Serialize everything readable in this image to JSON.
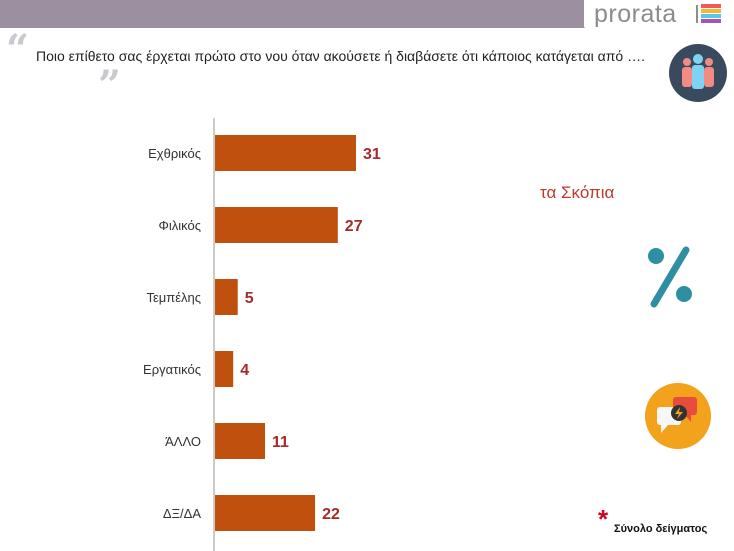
{
  "brand": {
    "name": "prorata",
    "logo_colors": [
      "#f15a5a",
      "#f7b731",
      "#5ec4e8",
      "#9b59b6"
    ]
  },
  "question": {
    "text": "Ποιο επίθετο σας έρχεται πρώτο στο νου όταν ακούσετε ή διαβάσετε ότι κάποιος κατάγεται από ….",
    "quote_open": "“",
    "quote_close": "”"
  },
  "subtitle": "τα Σκόπια",
  "footnote": {
    "mark": "*",
    "text": "Σύνολο δείγματος"
  },
  "icons": [
    "people-icon",
    "percent-icon",
    "chat-bubbles-icon"
  ],
  "colors": {
    "bar": "#c0500d",
    "value": "#a52a2a",
    "subtitle": "#c0392b",
    "accent_teal": "#2e8fa3"
  },
  "chart_data": {
    "type": "bar",
    "orientation": "horizontal",
    "categories": [
      "Εχθρικός",
      "Φιλικός",
      "Τεμπέλης",
      "Εργατικός",
      "ΆΛΛΟ",
      "ΔΞ/ΔΑ"
    ],
    "values": [
      31,
      27,
      5,
      4,
      11,
      22
    ],
    "title": "",
    "xlabel": "",
    "ylabel": "",
    "xlim": [
      0,
      32
    ],
    "grid": false
  }
}
